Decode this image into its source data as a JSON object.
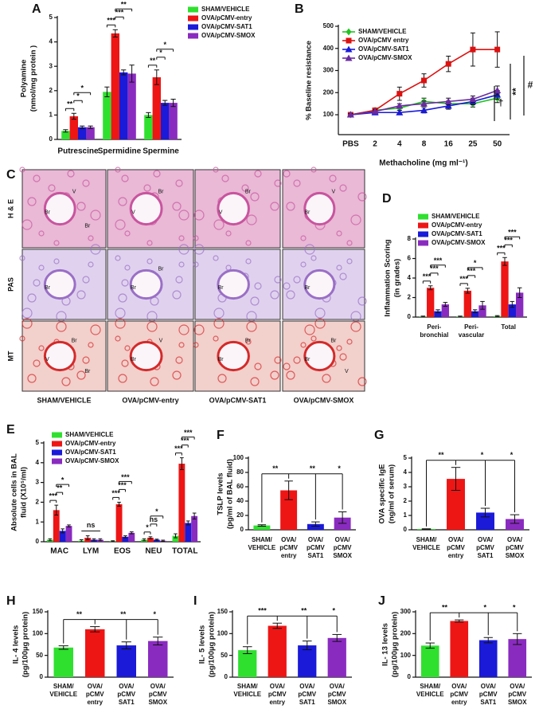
{
  "chart_data": [
    {
      "type": "bar",
      "label": "A",
      "ylabel": [
        "Polyamine",
        "(nmol/mg protein )"
      ],
      "categories": [
        "Putrescine",
        "Spermidine",
        "Spermine"
      ],
      "series": [
        {
          "name": "SHAM/VEHICLE",
          "color": "#2fe02f",
          "values": [
            0.35,
            1.95,
            1.0
          ],
          "errors": [
            0.05,
            0.2,
            0.1
          ]
        },
        {
          "name": "OVA/pCMV-entry",
          "color": "#ee1515",
          "values": [
            0.95,
            4.35,
            2.55
          ],
          "errors": [
            0.12,
            0.15,
            0.3
          ]
        },
        {
          "name": "OVA/pCMV-SAT1",
          "color": "#1a1ad8",
          "values": [
            0.5,
            2.75,
            1.5
          ],
          "errors": [
            0.05,
            0.1,
            0.1
          ]
        },
        {
          "name": "OVA/pCMV-SMOX",
          "color": "#8a2bc0",
          "values": [
            0.5,
            2.7,
            1.5
          ],
          "errors": [
            0.05,
            0.35,
            0.15
          ]
        }
      ],
      "significance": [
        [
          "**",
          "*",
          "*"
        ],
        [
          "***",
          "***",
          "**"
        ],
        [
          "**",
          "*",
          "*"
        ]
      ],
      "ylim": [
        0,
        5
      ],
      "yticks": [
        0,
        1,
        2,
        3,
        4,
        5
      ]
    },
    {
      "type": "line",
      "label": "B",
      "ylabel": [
        "% Baseline  resistance"
      ],
      "xlabel": "Methacholine (mg ml⁻¹)",
      "categories": [
        "PBS",
        "2",
        "4",
        "8",
        "16",
        "25",
        "50"
      ],
      "series": [
        {
          "name": "SHAM/VEHICLE",
          "color": "#22c422",
          "marker": "diamond",
          "values": [
            100,
            120,
            130,
            160,
            150,
            150,
            175
          ],
          "errors": [
            5,
            8,
            10,
            15,
            12,
            15,
            20
          ]
        },
        {
          "name": "OVA/pCMV entry",
          "color": "#dd1111",
          "marker": "square",
          "values": [
            100,
            120,
            195,
            255,
            330,
            395,
            395
          ],
          "errors": [
            5,
            10,
            30,
            30,
            35,
            75,
            80
          ]
        },
        {
          "name": "OVA/pCMV-SAT1",
          "color": "#1a1ad8",
          "marker": "triangle",
          "values": [
            100,
            110,
            110,
            120,
            140,
            160,
            190
          ],
          "errors": [
            5,
            8,
            10,
            12,
            15,
            15,
            20
          ]
        },
        {
          "name": "OVA/pCMV-SMOX",
          "color": "#6a2ba0",
          "marker": "triangle",
          "values": [
            100,
            115,
            140,
            150,
            160,
            170,
            210
          ],
          "errors": [
            5,
            8,
            10,
            12,
            15,
            15,
            20
          ]
        }
      ],
      "annotations": [
        "†",
        "**",
        "#"
      ],
      "ylim": [
        10,
        500
      ],
      "yticks": [
        100,
        200,
        300,
        400,
        500
      ]
    },
    {
      "type": "bar",
      "label": "D",
      "ylabel": [
        "Inflammation Scoring",
        "(in grades)"
      ],
      "categories": [
        [
          "Peri-",
          "bronchial"
        ],
        [
          "Peri-",
          "vascular"
        ],
        [
          "Total"
        ]
      ],
      "series": [
        {
          "name": "SHAM/VEHICLE",
          "color": "#2fe02f",
          "values": [
            0.05,
            0.05,
            0.1
          ],
          "errors": [
            0.05,
            0.05,
            0.05
          ]
        },
        {
          "name": "OVA/pCMV-entry",
          "color": "#ee1515",
          "values": [
            3.0,
            2.7,
            5.7
          ],
          "errors": [
            0.2,
            0.25,
            0.4
          ]
        },
        {
          "name": "OVA/pCMV-SAT1",
          "color": "#1a1ad8",
          "values": [
            0.6,
            0.6,
            1.3
          ],
          "errors": [
            0.15,
            0.15,
            0.3
          ]
        },
        {
          "name": "OVA/pCMV-SMOX",
          "color": "#8a2bc0",
          "values": [
            1.3,
            1.2,
            2.5
          ],
          "errors": [
            0.2,
            0.4,
            0.5
          ]
        }
      ],
      "significance": [
        [
          "***",
          "***",
          "***"
        ],
        [
          "***",
          "***",
          "*"
        ],
        [
          "***",
          "***",
          "***"
        ]
      ],
      "ylim": [
        0,
        8
      ],
      "yticks": [
        0,
        2,
        4,
        6,
        8
      ]
    },
    {
      "type": "bar",
      "label": "E",
      "ylabel": [
        "Absolute cells in BAL",
        "fluid (X10⁵/ml)"
      ],
      "categories": [
        "MAC",
        "LYM",
        "EOS",
        "NEU",
        "TOTAL"
      ],
      "series": [
        {
          "name": "SHAM/VEHICLE",
          "color": "#2fe02f",
          "values": [
            0.1,
            0.05,
            0.03,
            0.1,
            0.3
          ],
          "errors": [
            0.05,
            0.05,
            0.02,
            0.05,
            0.1
          ]
        },
        {
          "name": "OVA/pCMV-entry",
          "color": "#ee1515",
          "values": [
            1.6,
            0.2,
            1.9,
            0.2,
            3.95
          ],
          "errors": [
            0.25,
            0.1,
            0.1,
            0.05,
            0.3
          ]
        },
        {
          "name": "OVA/pCMV-SAT1",
          "color": "#1a1ad8",
          "values": [
            0.55,
            0.1,
            0.25,
            0.1,
            0.95
          ],
          "errors": [
            0.1,
            0.05,
            0.05,
            0.03,
            0.1
          ]
        },
        {
          "name": "OVA/pCMV-SMOX",
          "color": "#8a2bc0",
          "values": [
            0.8,
            0.1,
            0.45,
            0.05,
            1.3
          ],
          "errors": [
            0.05,
            0.05,
            0.05,
            0.03,
            0.15
          ]
        }
      ],
      "significance": [
        [
          "***",
          "**",
          "*"
        ],
        [
          "ns"
        ],
        [
          "***",
          "***",
          "***"
        ],
        [
          "*",
          "ns",
          "*"
        ],
        [
          "***",
          "***",
          "***"
        ]
      ],
      "ylim": [
        0,
        5
      ],
      "yticks": [
        0,
        1,
        2,
        3,
        4,
        5
      ]
    },
    {
      "type": "bar",
      "label": "F",
      "ylabel": [
        "TSLP levels",
        "(pg/ml of BAL fluid)"
      ],
      "categories": [
        [
          "SHAM/",
          "VEHICLE"
        ],
        [
          "OVA/",
          "pCMV",
          "entry"
        ],
        [
          "OVA/",
          "pCMV",
          "SAT1"
        ],
        [
          "OVA/",
          "pCMV",
          "SMOX"
        ]
      ],
      "values": [
        6,
        55,
        8,
        17
      ],
      "errors": [
        1,
        13,
        3,
        8
      ],
      "colors": [
        "#2fe02f",
        "#ee1515",
        "#1a1ad8",
        "#8a2bc0"
      ],
      "significance": [
        "**",
        "**",
        "*"
      ],
      "ylim": [
        0,
        100
      ],
      "yticks": [
        0,
        20,
        40,
        60,
        80,
        100
      ]
    },
    {
      "type": "bar",
      "label": "G",
      "ylabel": [
        "OVA specific IgE",
        "(ng/ml of serum)"
      ],
      "categories": [
        [
          "SHAM/",
          "VEHICLE"
        ],
        [
          "OVA/",
          "pCMV",
          "entry"
        ],
        [
          "OVA/",
          "pCMV",
          "SAT1"
        ],
        [
          "OVA/",
          "pCMV",
          "SMOX"
        ]
      ],
      "values": [
        0.05,
        3.55,
        1.2,
        0.75
      ],
      "errors": [
        0.02,
        0.8,
        0.3,
        0.3
      ],
      "colors": [
        "#2fe02f",
        "#ee1515",
        "#1a1ad8",
        "#8a2bc0"
      ],
      "significance": [
        "**",
        "*",
        "*"
      ],
      "ylim": [
        0,
        5
      ],
      "yticks": [
        0,
        1,
        2,
        3,
        4,
        5
      ]
    },
    {
      "type": "bar",
      "label": "H",
      "ylabel": [
        "IL- 4 levels",
        "(pg/100µg protein)"
      ],
      "categories": [
        [
          "SHAM/",
          "VEHICLE"
        ],
        [
          "OVA/",
          "pCMV",
          "entry"
        ],
        [
          "OVA/",
          "pCMV",
          "SAT1"
        ],
        [
          "OVA/",
          "pCMV",
          "SMOX"
        ]
      ],
      "values": [
        68,
        110,
        73,
        83
      ],
      "errors": [
        4,
        6,
        8,
        9
      ],
      "colors": [
        "#2fe02f",
        "#ee1515",
        "#1a1ad8",
        "#8a2bc0"
      ],
      "significance": [
        "**",
        "**",
        "*"
      ],
      "ylim": [
        0,
        150
      ],
      "yticks": [
        0,
        50,
        100,
        150
      ]
    },
    {
      "type": "bar",
      "label": "I",
      "ylabel": [
        "IL- 5 levels",
        "(pg/100µg protein)"
      ],
      "categories": [
        [
          "SHAM/",
          "VEHICLE"
        ],
        [
          "OVA/",
          "pCMV",
          "entry"
        ],
        [
          "OVA/",
          "pCMV",
          "SAT1"
        ],
        [
          "OVA/",
          "pCMV",
          "SMOX"
        ]
      ],
      "values": [
        62,
        118,
        73,
        90
      ],
      "errors": [
        8,
        6,
        10,
        8
      ],
      "colors": [
        "#2fe02f",
        "#ee1515",
        "#1a1ad8",
        "#8a2bc0"
      ],
      "significance": [
        "***",
        "**",
        "*"
      ],
      "ylim": [
        0,
        150
      ],
      "yticks": [
        0,
        50,
        100,
        150
      ]
    },
    {
      "type": "bar",
      "label": "J",
      "ylabel": [
        "IL- 13 levels",
        "(pg/100µg protein)"
      ],
      "categories": [
        [
          "SHAM/",
          "VEHICLE"
        ],
        [
          "OVA/",
          "pCMV",
          "entry"
        ],
        [
          "OVA/",
          "pCMV",
          "SAT1"
        ],
        [
          "OVA/",
          "pCMV",
          "SMOX"
        ]
      ],
      "values": [
        145,
        258,
        170,
        175
      ],
      "errors": [
        12,
        5,
        12,
        25
      ],
      "colors": [
        "#2fe02f",
        "#ee1515",
        "#1a1ad8",
        "#8a2bc0"
      ],
      "significance": [
        "**",
        "*",
        "*"
      ],
      "ylim": [
        0,
        300
      ],
      "yticks": [
        0,
        100,
        200,
        300
      ]
    }
  ],
  "histology": {
    "label": "C",
    "rows": [
      "H & E",
      "PAS",
      "MT"
    ],
    "columns": [
      "SHAM/VEHICLE",
      "OVA/pCMV-entry",
      "OVA/pCMV-SAT1",
      "OVA/pCMV-SMOX"
    ],
    "cells": [
      [
        [
          "Br",
          "V",
          "Br"
        ],
        [
          "V",
          "Br"
        ],
        [
          "V",
          "Br"
        ],
        [
          "Br",
          "V"
        ]
      ],
      [
        [
          "Br"
        ],
        [
          "Br",
          "Br"
        ],
        [
          "Br"
        ],
        [
          "Br"
        ]
      ],
      [
        [
          "V",
          "Br",
          "Br"
        ],
        [
          "Br",
          "V"
        ],
        [
          "Br",
          "Br"
        ],
        [
          "Br",
          "Br",
          "V"
        ]
      ]
    ]
  }
}
